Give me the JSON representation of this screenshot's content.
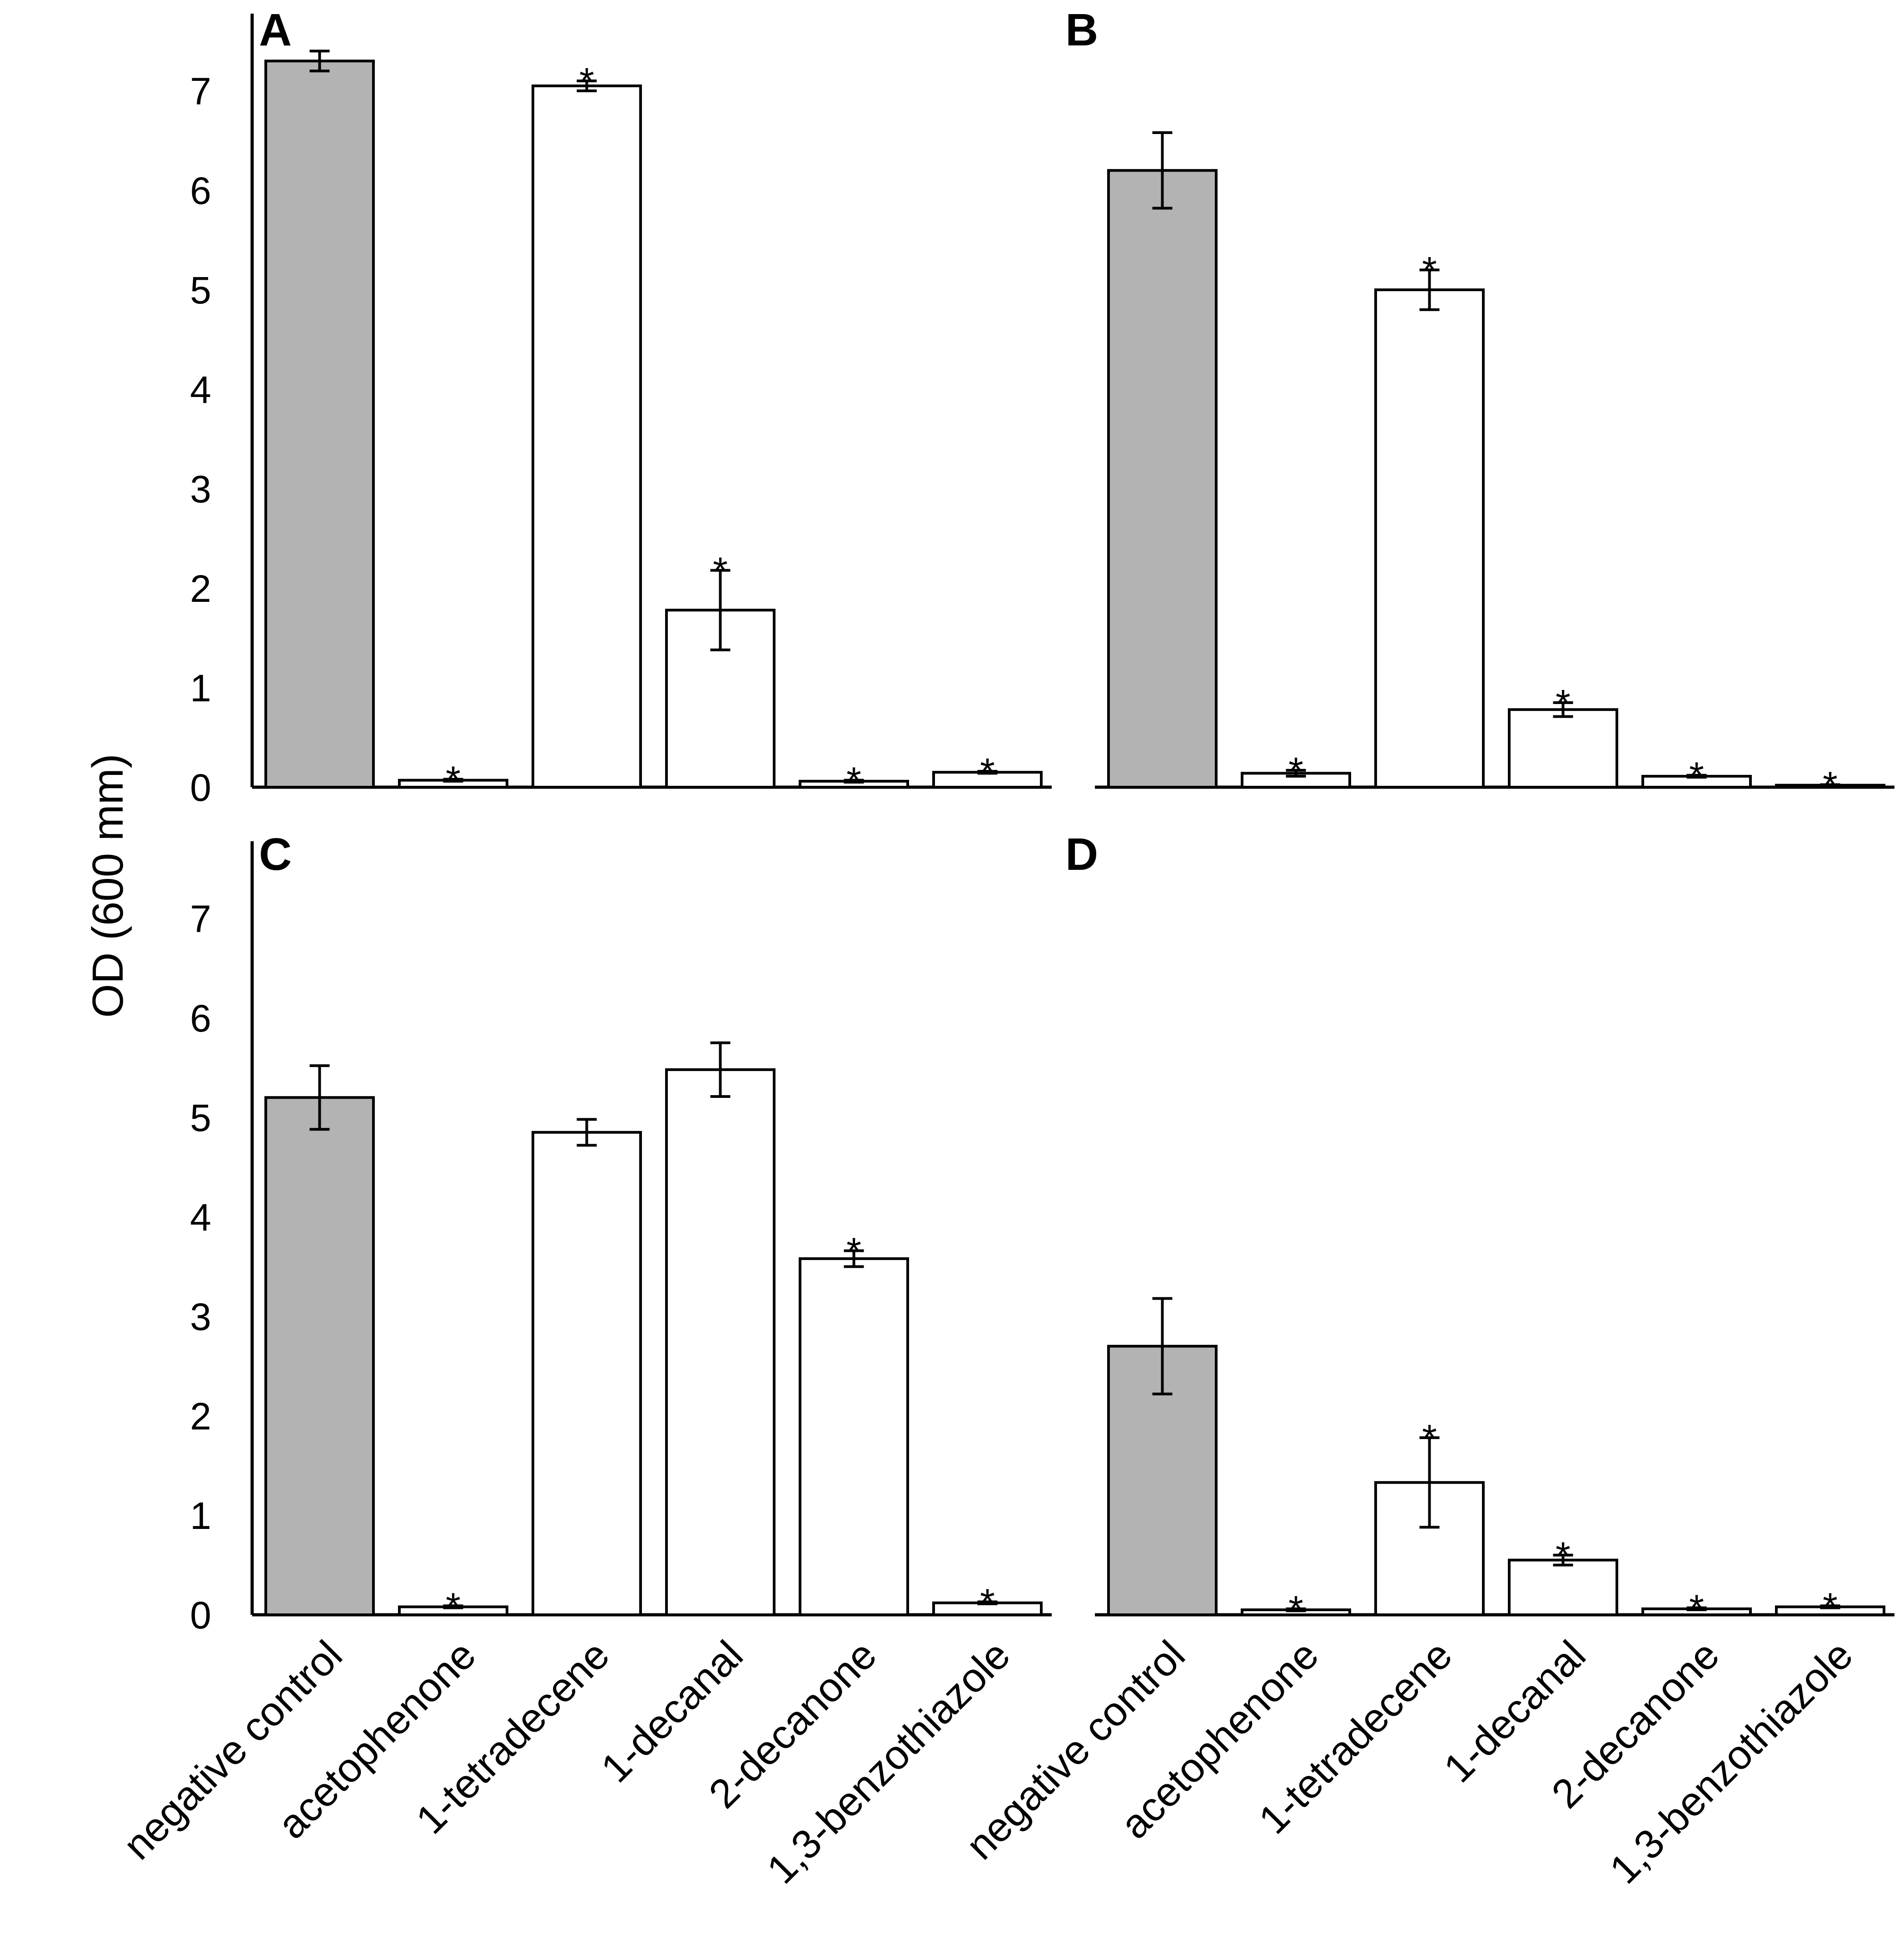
{
  "chart_data": {
    "type": "bar",
    "ylabel": "OD (600 mm)",
    "ylim": [
      0,
      7.5
    ],
    "yticks": [
      0,
      1,
      2,
      3,
      4,
      5,
      6,
      7
    ],
    "categories": [
      "negative control",
      "acetophenone",
      "1-tetradecene",
      "1-decanal",
      "2-decanone",
      "1,3-benzothiazole"
    ],
    "colors": {
      "control": "#b3b3b3",
      "treatment": "#ffffff",
      "stroke": "#000000"
    },
    "significance_marker": "*",
    "panels": [
      {
        "label": "A",
        "values": [
          7.3,
          0.07,
          7.05,
          1.78,
          0.06,
          0.15
        ],
        "errors": [
          0.1,
          0.01,
          0.05,
          0.4,
          0.01,
          0.01
        ],
        "significant": [
          false,
          true,
          true,
          true,
          true,
          true
        ]
      },
      {
        "label": "B",
        "values": [
          6.2,
          0.14,
          5.0,
          0.78,
          0.11,
          0.02
        ],
        "errors": [
          0.38,
          0.03,
          0.2,
          0.07,
          0.01,
          0.005
        ],
        "significant": [
          false,
          true,
          true,
          true,
          true,
          true
        ]
      },
      {
        "label": "C",
        "values": [
          5.2,
          0.08,
          4.85,
          5.48,
          3.58,
          0.12
        ],
        "errors": [
          0.32,
          0.01,
          0.13,
          0.27,
          0.08,
          0.01
        ],
        "significant": [
          false,
          true,
          false,
          false,
          true,
          true
        ]
      },
      {
        "label": "D",
        "values": [
          2.7,
          0.05,
          1.33,
          0.55,
          0.06,
          0.08
        ],
        "errors": [
          0.48,
          0.01,
          0.45,
          0.05,
          0.01,
          0.01
        ],
        "significant": [
          false,
          true,
          true,
          true,
          true,
          true
        ]
      }
    ]
  }
}
